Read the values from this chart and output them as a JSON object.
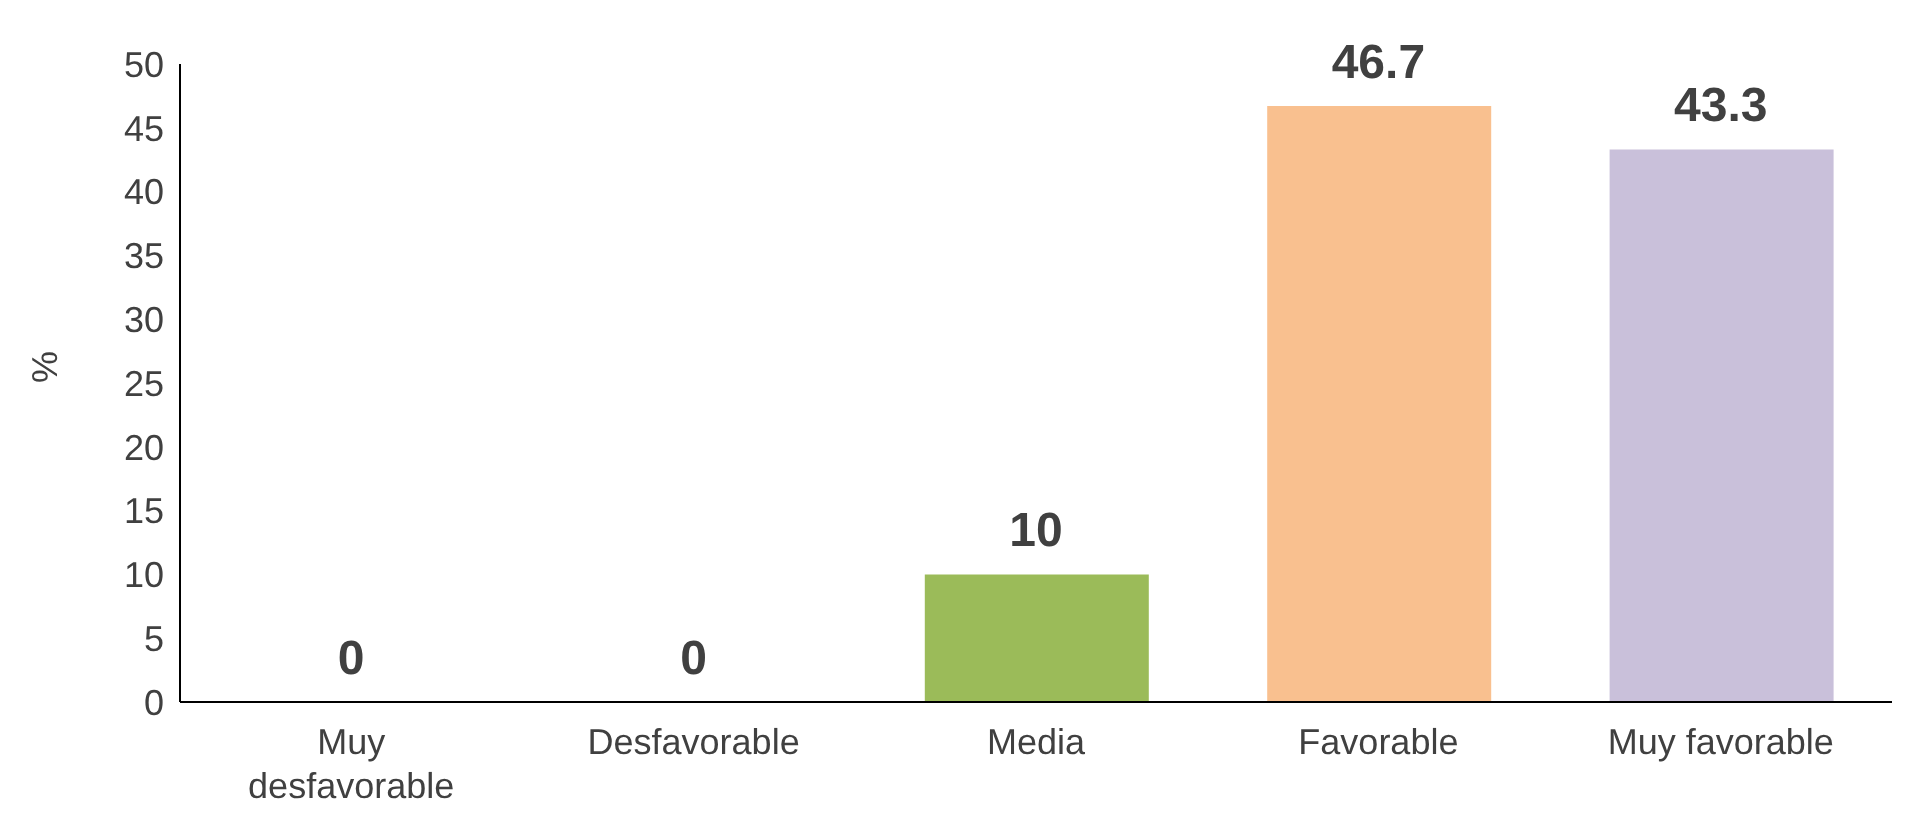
{
  "chart_data": {
    "type": "bar",
    "ylabel": "%",
    "categories": [
      "Muy desfavorable",
      "Desfavorable",
      "Media",
      "Favorable",
      "Muy favorable"
    ],
    "values": [
      0,
      0,
      10,
      46.7,
      43.3
    ],
    "colors": [
      "#5b9bd5",
      "#ed7d31",
      "#9bbb59",
      "#f9c08f",
      "#c9c0da"
    ],
    "ylim": [
      0,
      50
    ],
    "yticks": [
      0,
      5,
      10,
      15,
      20,
      25,
      30,
      35,
      40,
      45,
      50
    ],
    "data_labels": true,
    "grid": false
  }
}
